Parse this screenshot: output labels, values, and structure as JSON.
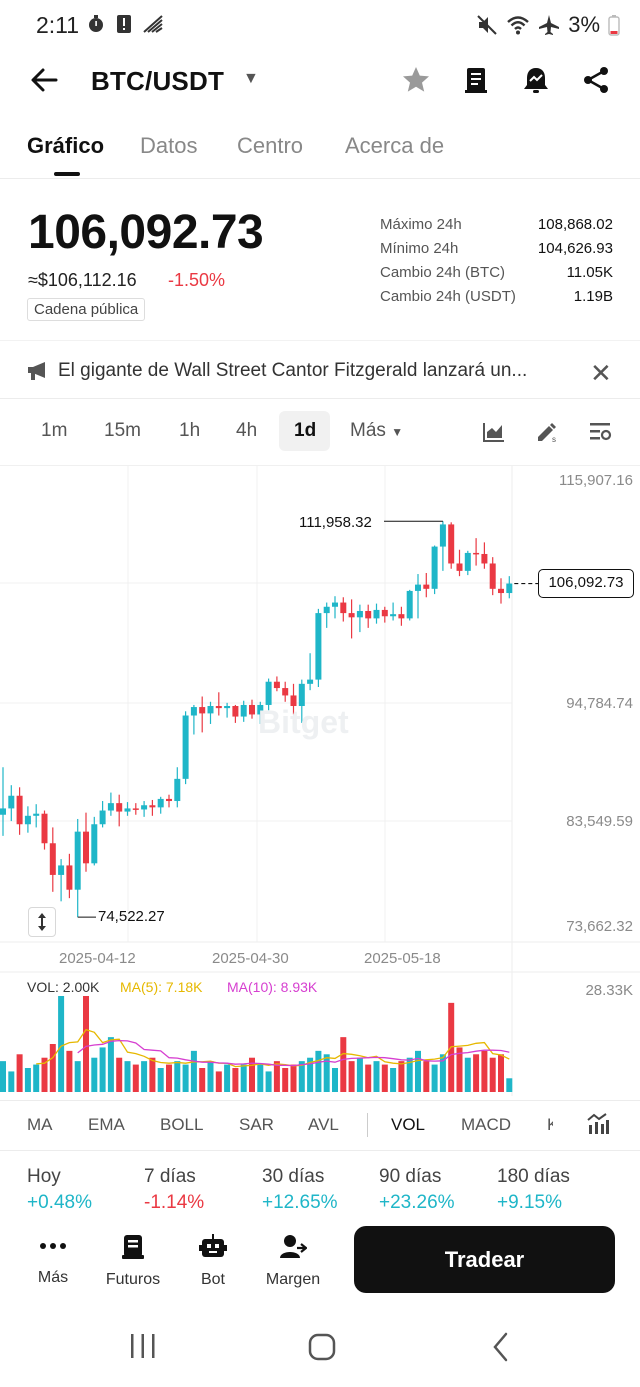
{
  "status_bar": {
    "time": "2:11",
    "battery": "3%"
  },
  "header": {
    "pair": "BTC/USDT"
  },
  "tabs": [
    {
      "label": "Gráfico",
      "active": true
    },
    {
      "label": "Datos"
    },
    {
      "label": "Centro"
    },
    {
      "label": "Acerca de"
    }
  ],
  "price": {
    "last": "106,092.73",
    "usd": "≈$106,112.16",
    "change_pct": "-1.50%",
    "chain_badge": "Cadena pública"
  },
  "stats": [
    {
      "label": "Máximo 24h",
      "value": "108,868.02"
    },
    {
      "label": "Mínimo 24h",
      "value": "104,626.93"
    },
    {
      "label": "Cambio 24h (BTC)",
      "value": "11.05K"
    },
    {
      "label": "Cambio 24h (USDT)",
      "value": "1.19B"
    }
  ],
  "news": {
    "text": "El gigante de Wall Street Cantor Fitzgerald lanzará un..."
  },
  "timeframes": [
    {
      "label": "1m"
    },
    {
      "label": "15m"
    },
    {
      "label": "1h"
    },
    {
      "label": "4h"
    },
    {
      "label": "1d",
      "active": true
    },
    {
      "label": "Más"
    }
  ],
  "chart_data": {
    "type": "candlestick",
    "interval": "1d",
    "price_axis": [
      "115,907.16",
      "94,784.74",
      "83,549.59",
      "73,662.32"
    ],
    "dates": [
      "2025-04-12",
      "2025-04-30",
      "2025-05-18"
    ],
    "ylim": [
      73662.32,
      115907.16
    ],
    "high_marker": "111,958.32",
    "low_marker": "74,522.27",
    "current_price": "106,092.73",
    "watermark": "Bitget",
    "up_color": "#1fb6c8",
    "down_color": "#ea3943",
    "candles": [
      {
        "o": 84200,
        "h": 88700,
        "l": 82200,
        "c": 84800
      },
      {
        "o": 84800,
        "h": 87000,
        "l": 83600,
        "c": 86000
      },
      {
        "o": 86000,
        "h": 86800,
        "l": 82300,
        "c": 83300
      },
      {
        "o": 83300,
        "h": 85000,
        "l": 82500,
        "c": 84100
      },
      {
        "o": 84100,
        "h": 85200,
        "l": 83000,
        "c": 84300
      },
      {
        "o": 84300,
        "h": 84600,
        "l": 80900,
        "c": 81500
      },
      {
        "o": 81500,
        "h": 83000,
        "l": 76900,
        "c": 78500
      },
      {
        "o": 78500,
        "h": 80000,
        "l": 76000,
        "c": 79400
      },
      {
        "o": 79400,
        "h": 80500,
        "l": 76300,
        "c": 77100
      },
      {
        "o": 77100,
        "h": 83800,
        "l": 74500,
        "c": 82600
      },
      {
        "o": 82600,
        "h": 84400,
        "l": 78800,
        "c": 79600
      },
      {
        "o": 79600,
        "h": 84000,
        "l": 79400,
        "c": 83300
      },
      {
        "o": 83300,
        "h": 85500,
        "l": 83000,
        "c": 84600
      },
      {
        "o": 84600,
        "h": 86300,
        "l": 84100,
        "c": 85300
      },
      {
        "o": 85300,
        "h": 86100,
        "l": 83100,
        "c": 84500
      },
      {
        "o": 84500,
        "h": 85400,
        "l": 84100,
        "c": 84800
      },
      {
        "o": 84800,
        "h": 85300,
        "l": 84200,
        "c": 84700
      },
      {
        "o": 84700,
        "h": 85500,
        "l": 84000,
        "c": 85100
      },
      {
        "o": 85100,
        "h": 85600,
        "l": 84100,
        "c": 84900
      },
      {
        "o": 84900,
        "h": 85900,
        "l": 84300,
        "c": 85700
      },
      {
        "o": 85700,
        "h": 86100,
        "l": 84900,
        "c": 85500
      },
      {
        "o": 85500,
        "h": 88700,
        "l": 84900,
        "c": 87600
      },
      {
        "o": 87600,
        "h": 94000,
        "l": 87100,
        "c": 93600
      },
      {
        "o": 93600,
        "h": 94600,
        "l": 91800,
        "c": 94400
      },
      {
        "o": 94400,
        "h": 95400,
        "l": 92000,
        "c": 93800
      },
      {
        "o": 93800,
        "h": 94900,
        "l": 92800,
        "c": 94500
      },
      {
        "o": 94500,
        "h": 95800,
        "l": 93600,
        "c": 94300
      },
      {
        "o": 94300,
        "h": 94800,
        "l": 93400,
        "c": 94500
      },
      {
        "o": 94500,
        "h": 94600,
        "l": 92900,
        "c": 93500
      },
      {
        "o": 93500,
        "h": 95000,
        "l": 93000,
        "c": 94600
      },
      {
        "o": 94600,
        "h": 95100,
        "l": 93300,
        "c": 93700
      },
      {
        "o": 93700,
        "h": 94900,
        "l": 92800,
        "c": 94600
      },
      {
        "o": 94600,
        "h": 97100,
        "l": 94100,
        "c": 96800
      },
      {
        "o": 96800,
        "h": 97300,
        "l": 95900,
        "c": 96200
      },
      {
        "o": 96200,
        "h": 96800,
        "l": 94900,
        "c": 95500
      },
      {
        "o": 95500,
        "h": 96600,
        "l": 93700,
        "c": 94500
      },
      {
        "o": 94500,
        "h": 97000,
        "l": 92900,
        "c": 96600
      },
      {
        "o": 96600,
        "h": 99500,
        "l": 96000,
        "c": 97000
      },
      {
        "o": 97000,
        "h": 103700,
        "l": 96300,
        "c": 103300
      },
      {
        "o": 103300,
        "h": 104300,
        "l": 101900,
        "c": 103900
      },
      {
        "o": 103900,
        "h": 104900,
        "l": 102800,
        "c": 104300
      },
      {
        "o": 104300,
        "h": 104800,
        "l": 102500,
        "c": 103300
      },
      {
        "o": 103300,
        "h": 104600,
        "l": 100900,
        "c": 102900
      },
      {
        "o": 102900,
        "h": 104100,
        "l": 101500,
        "c": 103500
      },
      {
        "o": 103500,
        "h": 104100,
        "l": 101900,
        "c": 102800
      },
      {
        "o": 102800,
        "h": 104200,
        "l": 102300,
        "c": 103600
      },
      {
        "o": 103600,
        "h": 103900,
        "l": 102400,
        "c": 103000
      },
      {
        "o": 103000,
        "h": 104300,
        "l": 102600,
        "c": 103200
      },
      {
        "o": 103200,
        "h": 103900,
        "l": 102100,
        "c": 102800
      },
      {
        "o": 102800,
        "h": 105500,
        "l": 102600,
        "c": 105400
      },
      {
        "o": 105400,
        "h": 107000,
        "l": 102800,
        "c": 106000
      },
      {
        "o": 106000,
        "h": 107100,
        "l": 104800,
        "c": 105600
      },
      {
        "o": 105600,
        "h": 109700,
        "l": 105100,
        "c": 109600
      },
      {
        "o": 109600,
        "h": 112000,
        "l": 107300,
        "c": 111700
      },
      {
        "o": 111700,
        "h": 111900,
        "l": 107500,
        "c": 108000
      },
      {
        "o": 108000,
        "h": 109300,
        "l": 106800,
        "c": 107300
      },
      {
        "o": 107300,
        "h": 109200,
        "l": 106900,
        "c": 109000
      },
      {
        "o": 109000,
        "h": 110400,
        "l": 107800,
        "c": 108900
      },
      {
        "o": 108900,
        "h": 110000,
        "l": 107500,
        "c": 108000
      },
      {
        "o": 108000,
        "h": 108600,
        "l": 105000,
        "c": 105600
      },
      {
        "o": 105600,
        "h": 106600,
        "l": 104200,
        "c": 105200
      },
      {
        "o": 105200,
        "h": 106800,
        "l": 104700,
        "c": 106100
      }
    ],
    "volume": {
      "vol": "VOL: 2.00K",
      "ma5": "MA(5): 7.18K",
      "ma10": "MA(10): 8.93K",
      "max": "28.33K",
      "ma5_color": "#e6b800",
      "ma10_color": "#d63fd0",
      "values": [
        9,
        6,
        11,
        7,
        8,
        10,
        14,
        28,
        12,
        9,
        28,
        10,
        13,
        16,
        10,
        9,
        8,
        9,
        10,
        7,
        8,
        9,
        8,
        12,
        7,
        9,
        6,
        8,
        7,
        8,
        10,
        8,
        6,
        9,
        7,
        8,
        9,
        10,
        12,
        11,
        7,
        16,
        9,
        10,
        8,
        9,
        8,
        7,
        9,
        10,
        12,
        9,
        8,
        11,
        26,
        13,
        10,
        11,
        12,
        10,
        11,
        4
      ]
    }
  },
  "indicators": [
    {
      "label": "MA"
    },
    {
      "label": "EMA"
    },
    {
      "label": "BOLL"
    },
    {
      "label": "SAR"
    },
    {
      "label": "AVL"
    },
    {
      "label": "VOL",
      "active": true
    },
    {
      "label": "MACD"
    },
    {
      "label": "K"
    }
  ],
  "performance": [
    {
      "label": "Hoy",
      "value": "+0.48%"
    },
    {
      "label": "7 días",
      "value": "-1.14%"
    },
    {
      "label": "30 días",
      "value": "+12.65%"
    },
    {
      "label": "90 días",
      "value": "+23.26%"
    },
    {
      "label": "180 días",
      "value": "+9.15%"
    }
  ],
  "bottom_nav": [
    {
      "label": "Más",
      "icon": "dots-icon"
    },
    {
      "label": "Futuros",
      "icon": "futures-icon"
    },
    {
      "label": "Bot",
      "icon": "bot-icon"
    },
    {
      "label": "Margen",
      "icon": "margin-icon"
    }
  ],
  "trade_button": "Tradear"
}
